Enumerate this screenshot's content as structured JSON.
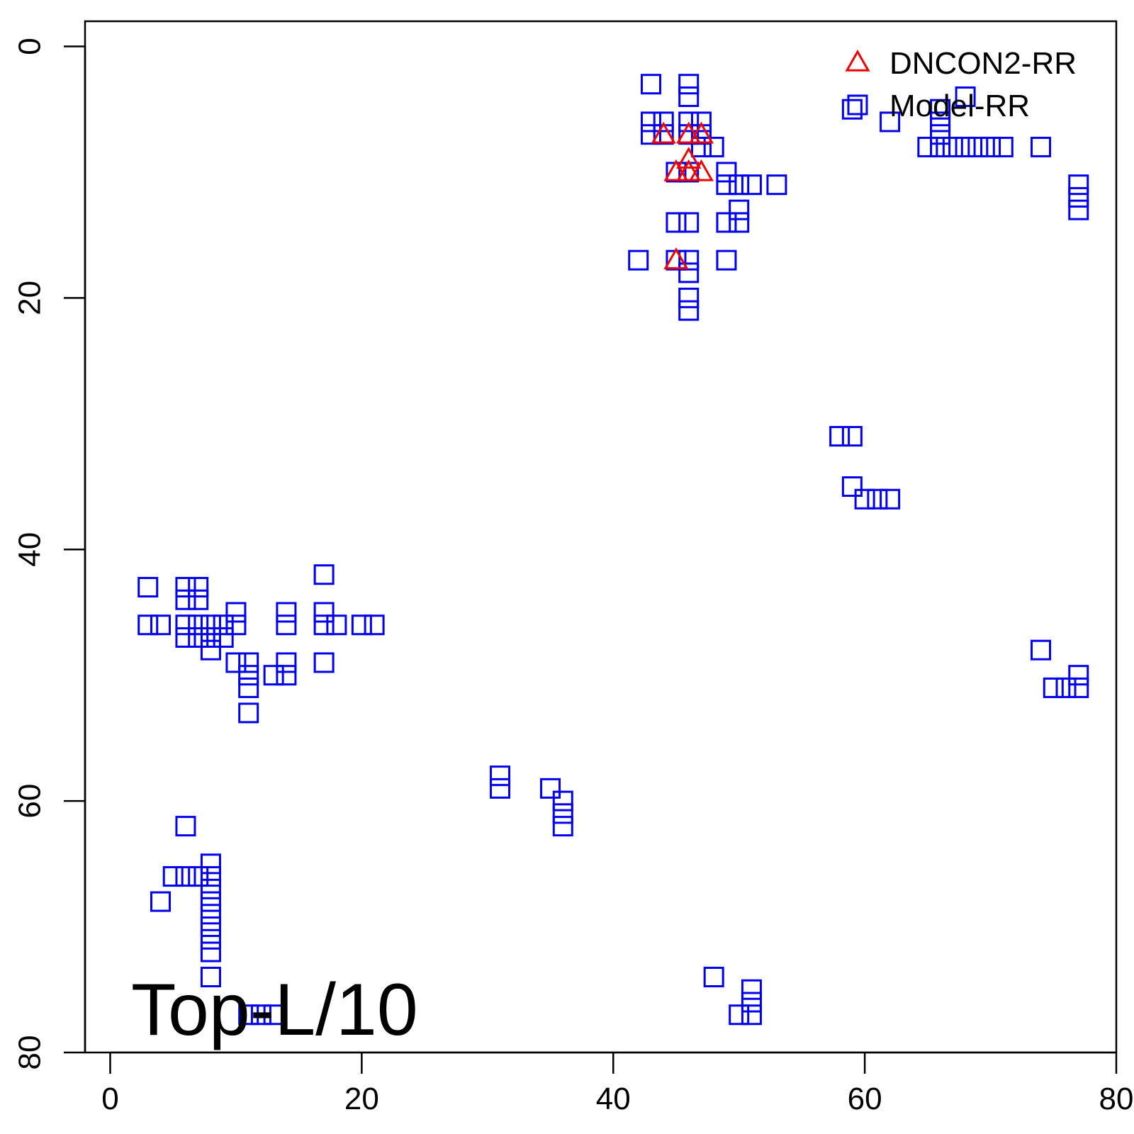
{
  "chart_data": {
    "type": "scatter",
    "title": "",
    "xlabel": "",
    "ylabel": "",
    "xlim": [
      -2,
      80
    ],
    "ylim": [
      80,
      -2
    ],
    "y_axis_reversed": true,
    "xticks": [
      "0",
      "20",
      "40",
      "60",
      "80"
    ],
    "yticks": [
      "0",
      "20",
      "40",
      "60",
      "80"
    ],
    "grid": false,
    "legend_position": "top-right",
    "annotation": "Top-L/10",
    "series": [
      {
        "name": "Model-RR",
        "marker": "square",
        "color": "#0000ee",
        "points": [
          [
            43,
            3
          ],
          [
            46,
            3
          ],
          [
            46,
            4
          ],
          [
            43,
            6
          ],
          [
            44,
            6
          ],
          [
            46,
            6
          ],
          [
            47,
            6
          ],
          [
            43,
            7
          ],
          [
            44,
            7
          ],
          [
            46,
            7
          ],
          [
            47,
            7
          ],
          [
            47,
            8
          ],
          [
            48,
            8
          ],
          [
            45,
            10
          ],
          [
            46,
            10
          ],
          [
            49,
            10
          ],
          [
            49,
            11
          ],
          [
            50,
            11
          ],
          [
            51,
            11
          ],
          [
            53,
            11
          ],
          [
            50,
            13
          ],
          [
            45,
            14
          ],
          [
            46,
            14
          ],
          [
            49,
            14
          ],
          [
            50,
            14
          ],
          [
            42,
            17
          ],
          [
            45,
            17
          ],
          [
            46,
            17
          ],
          [
            49,
            17
          ],
          [
            46,
            18
          ],
          [
            46,
            20
          ],
          [
            46,
            21
          ],
          [
            68,
            4
          ],
          [
            59,
            5
          ],
          [
            66,
            5
          ],
          [
            62,
            6
          ],
          [
            66,
            6
          ],
          [
            66,
            7
          ],
          [
            65,
            8
          ],
          [
            66,
            8
          ],
          [
            67,
            8
          ],
          [
            68,
            8
          ],
          [
            69,
            8
          ],
          [
            70,
            8
          ],
          [
            71,
            8
          ],
          [
            74,
            8
          ],
          [
            77,
            11
          ],
          [
            77,
            12
          ],
          [
            77,
            13
          ],
          [
            58,
            31
          ],
          [
            59,
            31
          ],
          [
            59,
            35
          ],
          [
            60,
            36
          ],
          [
            61,
            36
          ],
          [
            62,
            36
          ],
          [
            17,
            42
          ],
          [
            3,
            43
          ],
          [
            6,
            43
          ],
          [
            7,
            43
          ],
          [
            6,
            44
          ],
          [
            7,
            44
          ],
          [
            10,
            45
          ],
          [
            14,
            45
          ],
          [
            17,
            45
          ],
          [
            3,
            46
          ],
          [
            4,
            46
          ],
          [
            6,
            46
          ],
          [
            7,
            46
          ],
          [
            8,
            46
          ],
          [
            9,
            46
          ],
          [
            10,
            46
          ],
          [
            14,
            46
          ],
          [
            17,
            46
          ],
          [
            18,
            46
          ],
          [
            20,
            46
          ],
          [
            21,
            46
          ],
          [
            6,
            47
          ],
          [
            7,
            47
          ],
          [
            8,
            47
          ],
          [
            9,
            47
          ],
          [
            8,
            48
          ],
          [
            10,
            49
          ],
          [
            11,
            49
          ],
          [
            14,
            49
          ],
          [
            17,
            49
          ],
          [
            11,
            50
          ],
          [
            13,
            50
          ],
          [
            14,
            50
          ],
          [
            11,
            51
          ],
          [
            11,
            53
          ],
          [
            74,
            48
          ],
          [
            77,
            50
          ],
          [
            75,
            51
          ],
          [
            76,
            51
          ],
          [
            77,
            51
          ],
          [
            31,
            58
          ],
          [
            31,
            59
          ],
          [
            35,
            59
          ],
          [
            36,
            60
          ],
          [
            36,
            61
          ],
          [
            36,
            62
          ],
          [
            6,
            62
          ],
          [
            8,
            65
          ],
          [
            5,
            66
          ],
          [
            6,
            66
          ],
          [
            7,
            66
          ],
          [
            8,
            66
          ],
          [
            8,
            67
          ],
          [
            4,
            68
          ],
          [
            8,
            68
          ],
          [
            8,
            69
          ],
          [
            8,
            70
          ],
          [
            8,
            71
          ],
          [
            8,
            72
          ],
          [
            8,
            74
          ],
          [
            48,
            74
          ],
          [
            51,
            75
          ],
          [
            51,
            76
          ],
          [
            51,
            77
          ],
          [
            50,
            77
          ],
          [
            11,
            77
          ],
          [
            12,
            77
          ],
          [
            13,
            77
          ]
        ]
      },
      {
        "name": "DNCON2-RR",
        "marker": "triangle",
        "color": "#ee0000",
        "points": [
          [
            44,
            7
          ],
          [
            46,
            7
          ],
          [
            47,
            7
          ],
          [
            46,
            9
          ],
          [
            45,
            10
          ],
          [
            46,
            10
          ],
          [
            47,
            10
          ],
          [
            45,
            17
          ]
        ]
      }
    ]
  }
}
